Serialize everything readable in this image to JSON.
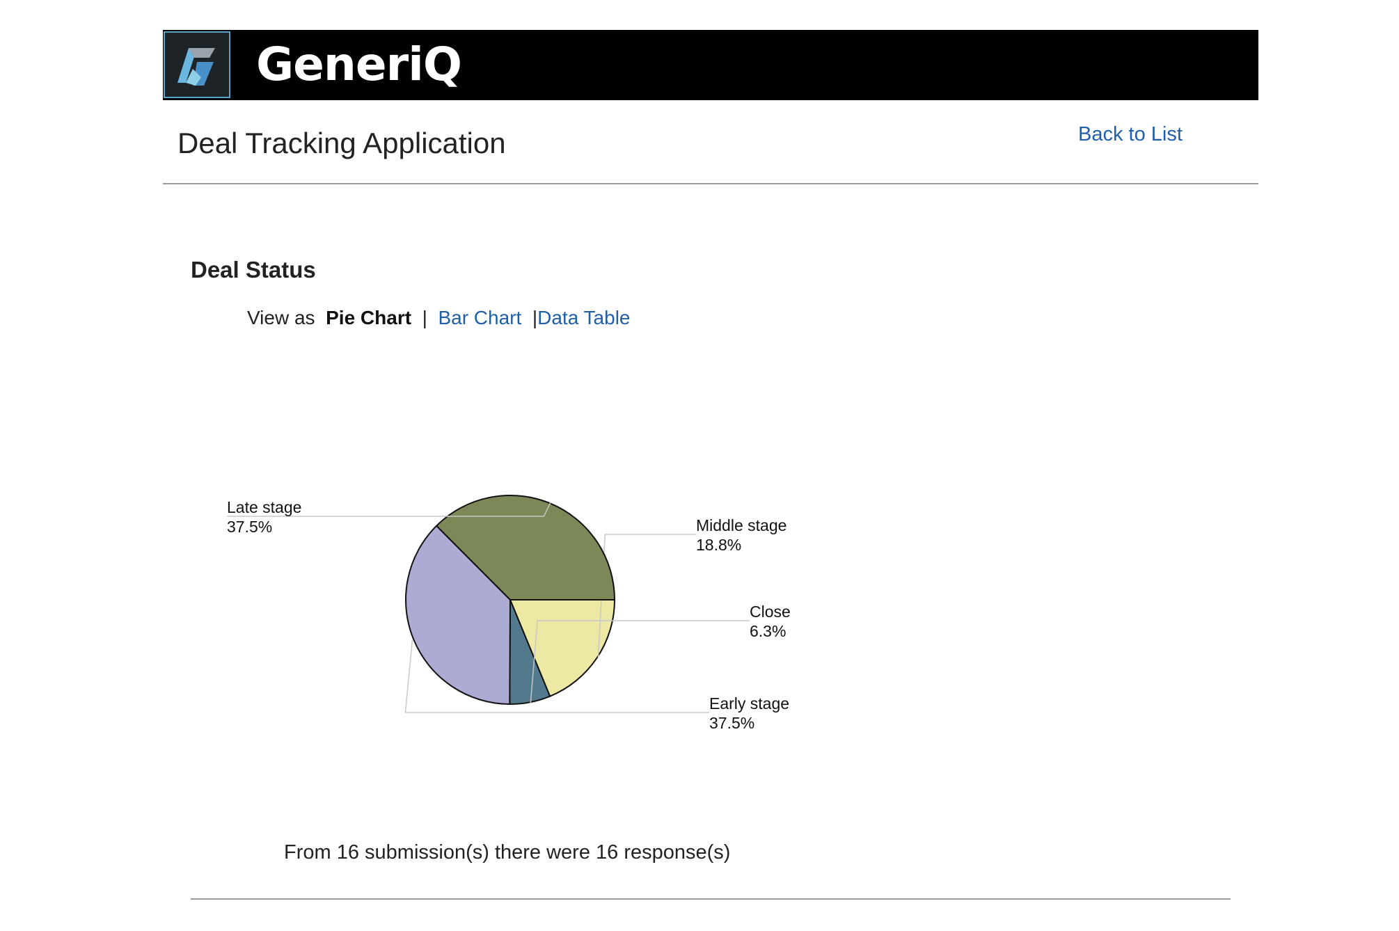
{
  "brand": {
    "name": "GeneriQ"
  },
  "header": {
    "app_title": "Deal Tracking Application",
    "back_link": "Back to List"
  },
  "section": {
    "title": "Deal Status",
    "view_as_label": "View as",
    "views": [
      {
        "label": "Pie Chart",
        "active": true
      },
      {
        "label": "Bar Chart",
        "active": false
      },
      {
        "label": "Data Table",
        "active": false
      }
    ],
    "separator": "|"
  },
  "chart_data": {
    "type": "pie",
    "categories": [
      "Middle stage",
      "Close",
      "Early stage",
      "Late stage"
    ],
    "values": [
      18.8,
      6.3,
      37.5,
      37.5
    ],
    "percent_labels": [
      "18.8%",
      "6.3%",
      "37.5%",
      "37.5%"
    ],
    "colors": [
      "#ede8a4",
      "#52798c",
      "#acabd4",
      "#7c8858"
    ],
    "start_angle": "3 o'clock, clockwise",
    "title": "",
    "legend": "none (slice callouts)"
  },
  "summary": "From 16 submission(s) there were 16 response(s)"
}
